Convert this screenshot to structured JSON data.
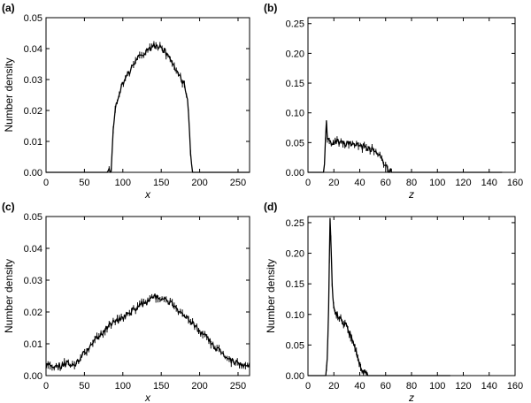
{
  "chart_data": [
    {
      "panel": "(a)",
      "type": "line",
      "xlabel": "x",
      "ylabel": "Number density",
      "xlim": [
        0,
        265
      ],
      "ylim": [
        0,
        0.05
      ],
      "xticks": [
        0,
        50,
        100,
        150,
        200,
        250
      ],
      "xtick_labels": [
        "0",
        "50",
        "100",
        "150",
        "200",
        "250"
      ],
      "yticks": [
        0,
        0.01,
        0.02,
        0.03,
        0.04,
        0.05
      ],
      "ytick_labels": [
        "0.00",
        "0.01",
        "0.02",
        "0.03",
        "0.04",
        "0.05"
      ],
      "series": [
        {
          "x": [
            0,
            80,
            85,
            87,
            90,
            95,
            100,
            105,
            110,
            115,
            120,
            125,
            130,
            135,
            140,
            145,
            150,
            155,
            160,
            165,
            170,
            175,
            180,
            183,
            186,
            188,
            190,
            200,
            265
          ],
          "y": [
            0,
            0,
            0.001,
            0.013,
            0.02,
            0.025,
            0.029,
            0.031,
            0.033,
            0.035,
            0.037,
            0.038,
            0.039,
            0.04,
            0.041,
            0.041,
            0.04,
            0.039,
            0.037,
            0.035,
            0.033,
            0.031,
            0.028,
            0.025,
            0.019,
            0.007,
            0,
            0,
            0
          ]
        }
      ]
    },
    {
      "panel": "(b)",
      "type": "line",
      "xlabel": "z",
      "ylabel": "",
      "xlim": [
        0,
        160
      ],
      "ylim": [
        0,
        0.26
      ],
      "xticks": [
        0,
        20,
        40,
        60,
        80,
        100,
        120,
        140,
        160
      ],
      "xtick_labels": [
        "0",
        "20",
        "40",
        "60",
        "80",
        "100",
        "120",
        "140",
        "160"
      ],
      "yticks": [
        0,
        0.05,
        0.1,
        0.15,
        0.2,
        0.25
      ],
      "ytick_labels": [
        "0.00",
        "0.05",
        "0.10",
        "0.15",
        "0.20",
        "0.25"
      ],
      "series": [
        {
          "x": [
            0,
            12,
            13,
            14,
            15,
            17,
            20,
            25,
            30,
            35,
            40,
            45,
            50,
            53,
            56,
            59,
            61,
            63,
            65,
            80,
            150
          ],
          "y": [
            0,
            0,
            0.02,
            0.092,
            0.055,
            0.05,
            0.052,
            0.05,
            0.048,
            0.046,
            0.044,
            0.042,
            0.038,
            0.033,
            0.025,
            0.015,
            0.007,
            0.002,
            0,
            0,
            0
          ]
        }
      ]
    },
    {
      "panel": "(c)",
      "type": "line",
      "xlabel": "x",
      "ylabel": "Number density",
      "xlim": [
        0,
        265
      ],
      "ylim": [
        0,
        0.05
      ],
      "xticks": [
        0,
        50,
        100,
        150,
        200,
        250
      ],
      "xtick_labels": [
        "0",
        "50",
        "100",
        "150",
        "200",
        "250"
      ],
      "yticks": [
        0,
        0.01,
        0.02,
        0.03,
        0.04,
        0.05
      ],
      "ytick_labels": [
        "0.00",
        "0.01",
        "0.02",
        "0.03",
        "0.04",
        "0.05"
      ],
      "series": [
        {
          "x": [
            0,
            10,
            20,
            30,
            40,
            50,
            60,
            70,
            80,
            90,
            100,
            110,
            120,
            130,
            140,
            150,
            160,
            170,
            180,
            190,
            200,
            210,
            220,
            230,
            240,
            250,
            260,
            265
          ],
          "y": [
            0.003,
            0.003,
            0.003,
            0.004,
            0.004,
            0.007,
            0.01,
            0.013,
            0.015,
            0.017,
            0.018,
            0.02,
            0.022,
            0.023,
            0.025,
            0.024,
            0.023,
            0.021,
            0.019,
            0.017,
            0.014,
            0.012,
            0.009,
            0.007,
            0.005,
            0.004,
            0.003,
            0.003
          ]
        }
      ]
    },
    {
      "panel": "(d)",
      "type": "line",
      "xlabel": "z",
      "ylabel": "Number density",
      "xlim": [
        0,
        160
      ],
      "ylim": [
        0,
        0.26
      ],
      "xticks": [
        0,
        20,
        40,
        60,
        80,
        100,
        120,
        140,
        160
      ],
      "xtick_labels": [
        "0",
        "20",
        "40",
        "60",
        "80",
        "100",
        "120",
        "140",
        "160"
      ],
      "yticks": [
        0,
        0.05,
        0.1,
        0.15,
        0.2,
        0.25
      ],
      "ytick_labels": [
        "0.00",
        "0.05",
        "0.10",
        "0.15",
        "0.20",
        "0.25"
      ],
      "series": [
        {
          "x": [
            0,
            14,
            15,
            16,
            17,
            18,
            19,
            20,
            22,
            25,
            28,
            31,
            34,
            37,
            40,
            42,
            44,
            46,
            60,
            110
          ],
          "y": [
            0,
            0,
            0.03,
            0.12,
            0.26,
            0.2,
            0.13,
            0.115,
            0.1,
            0.095,
            0.085,
            0.075,
            0.06,
            0.04,
            0.02,
            0.01,
            0.003,
            0,
            0,
            0
          ]
        }
      ]
    }
  ]
}
